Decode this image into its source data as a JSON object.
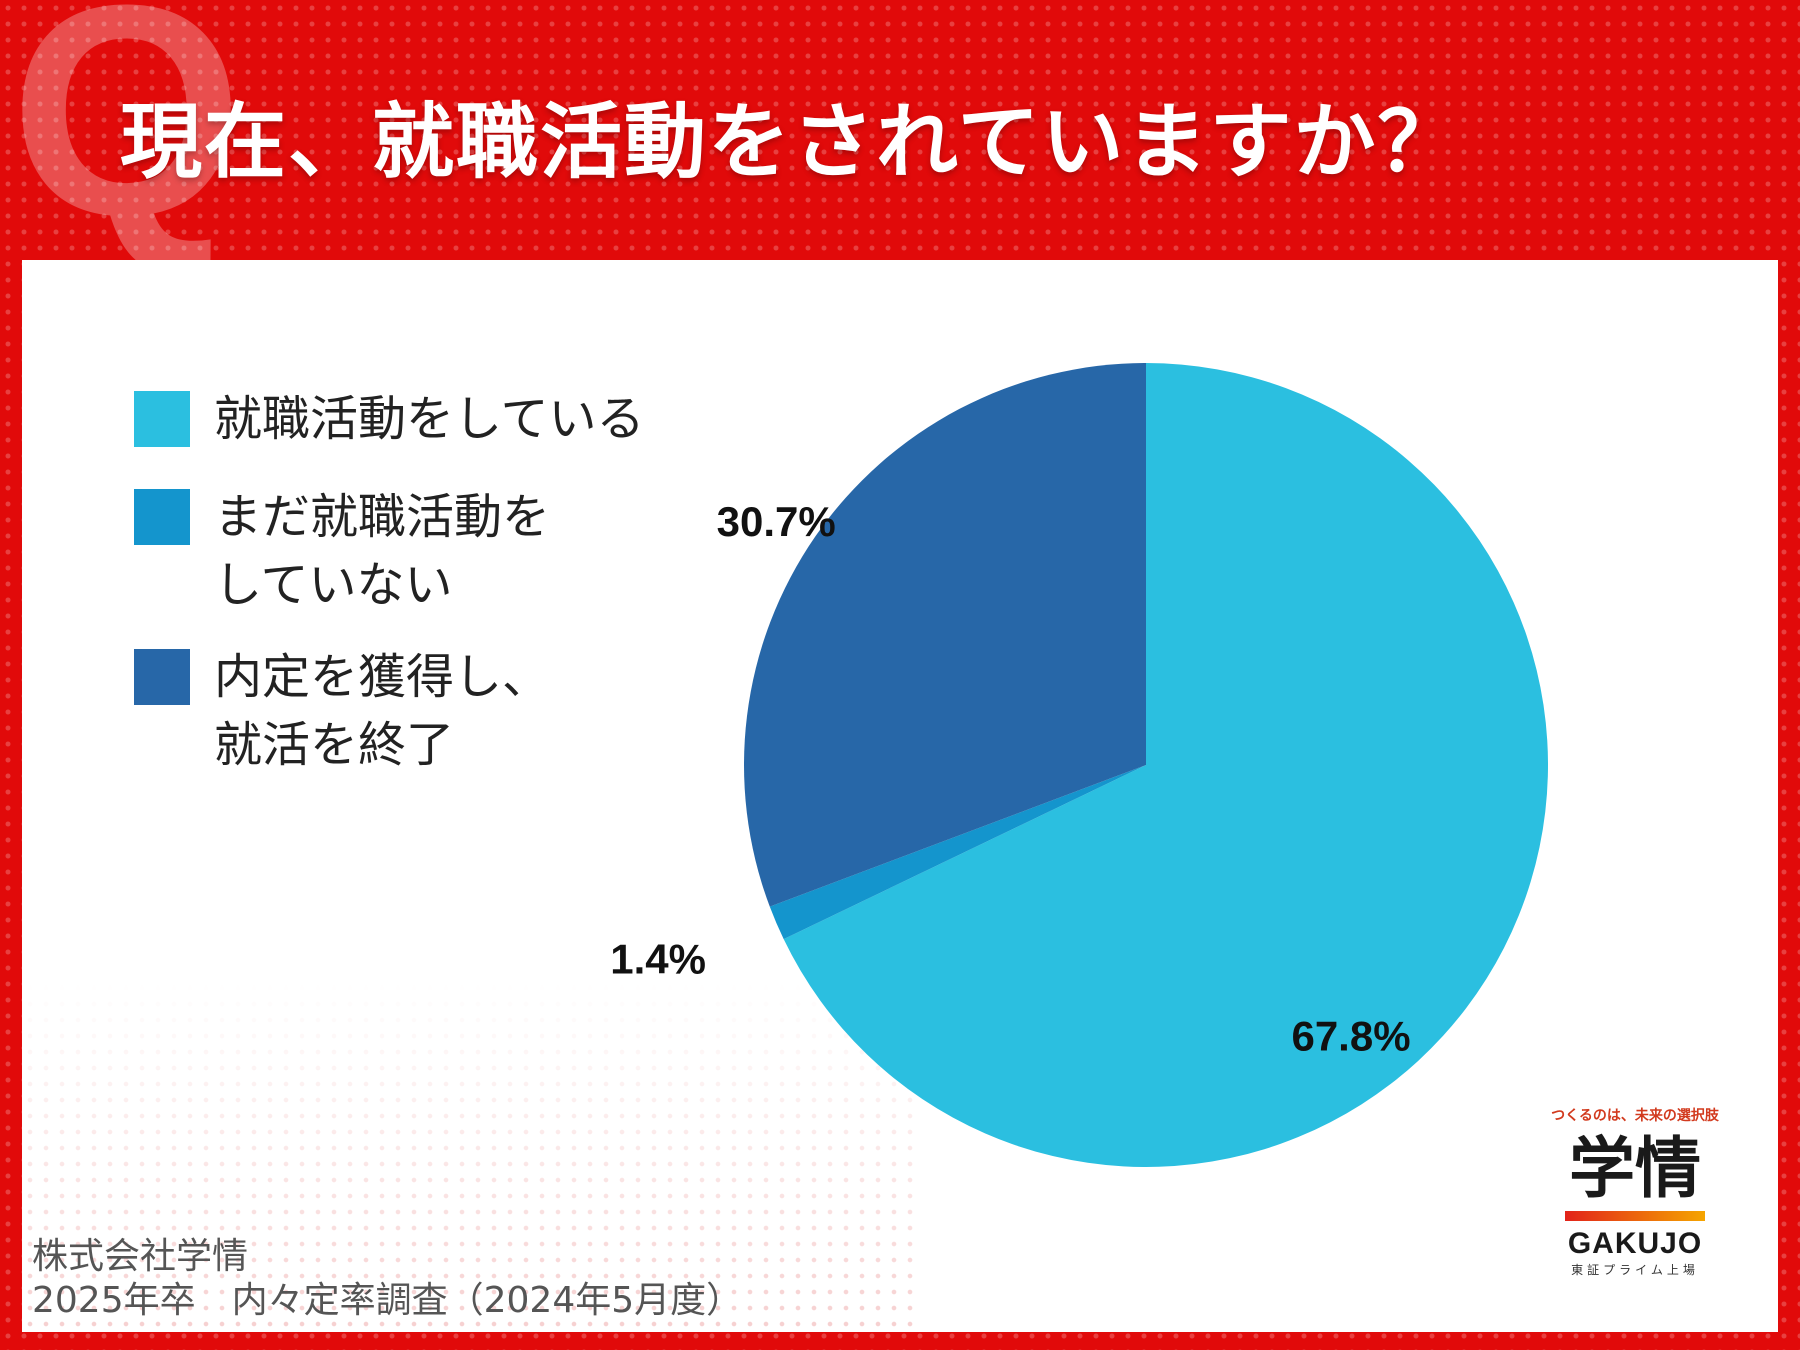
{
  "title": "現在、就職活動をされていますか？",
  "q_mark": "Q",
  "legend": [
    {
      "label": "就職活動をしている",
      "color": "#2bbfe0"
    },
    {
      "label": "まだ就職活動を\nしていない",
      "color": "#1495cd"
    },
    {
      "label": "内定を獲得し、\n就活を終了",
      "color": "#2767a8"
    }
  ],
  "chart_data": {
    "type": "pie",
    "title": "現在、就職活動をされていますか？",
    "slices": [
      {
        "label": "就職活動をしている",
        "value": 67.8,
        "display": "67.8%",
        "color": "#2bbfe0"
      },
      {
        "label": "まだ就職活動をしていない",
        "value": 1.4,
        "display": "1.4%",
        "color": "#1495cd"
      },
      {
        "label": "内定を獲得し、就活を終了",
        "value": 30.7,
        "display": "30.7%",
        "color": "#2767a8"
      }
    ],
    "start_angle": "12 o'clock",
    "direction": "clockwise"
  },
  "source": {
    "line1": "株式会社学情",
    "line2": "2025年卒　内々定率調査（2024年5月度）"
  },
  "logo": {
    "tagline": "つくるのは、未来の選択肢",
    "main": "学情",
    "en": "GAKUJO",
    "sub": "東証プライム上場"
  }
}
